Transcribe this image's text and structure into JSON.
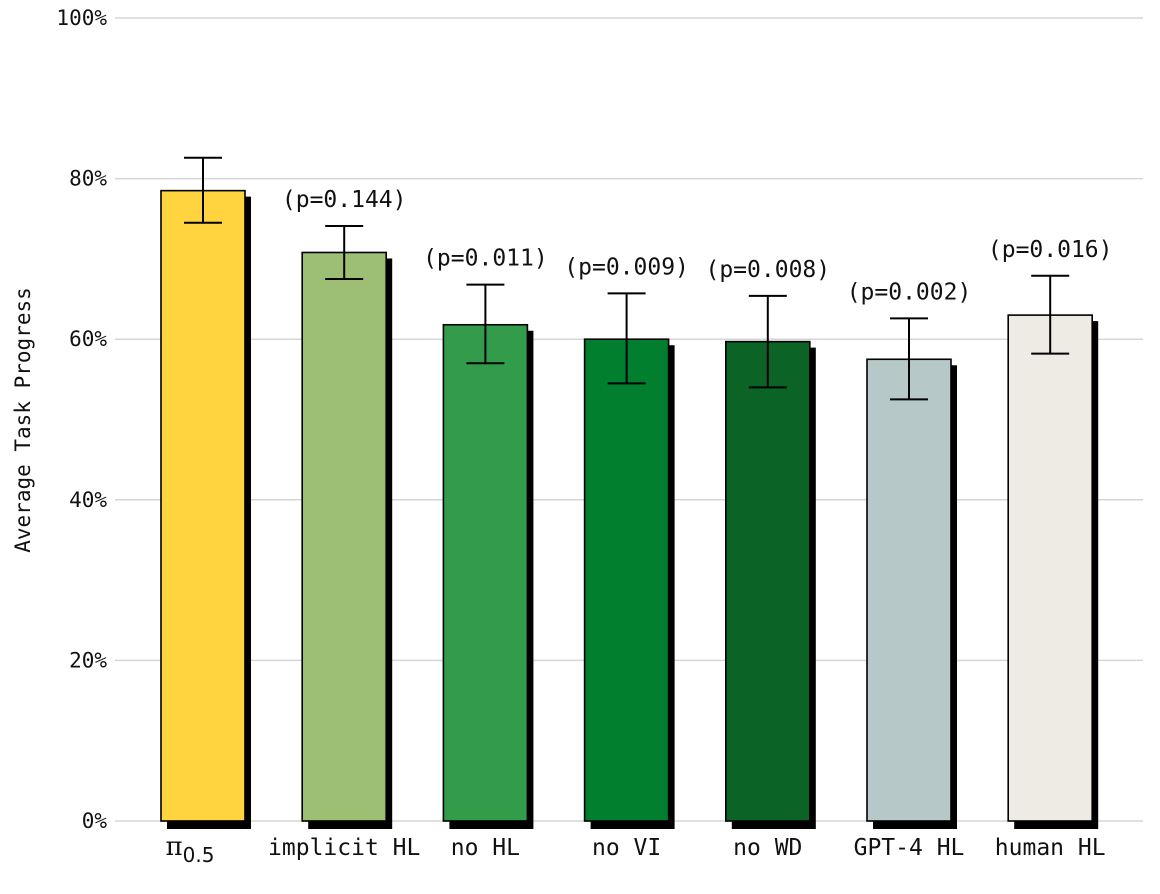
{
  "chart_data": {
    "type": "bar",
    "ylabel": "Average Task Progress",
    "xlabel": "",
    "ylim": [
      0,
      100
    ],
    "yticks": [
      0,
      20,
      40,
      60,
      80,
      100
    ],
    "ytick_labels": [
      "0%",
      "20%",
      "40%",
      "60%",
      "80%",
      "100%"
    ],
    "grid": true,
    "categories": [
      {
        "label": "π",
        "subscript": "0.5"
      },
      {
        "label": "implicit HL",
        "subscript": ""
      },
      {
        "label": "no HL",
        "subscript": ""
      },
      {
        "label": "no VI",
        "subscript": ""
      },
      {
        "label": "no WD",
        "subscript": ""
      },
      {
        "label": "GPT-4 HL",
        "subscript": ""
      },
      {
        "label": "human HL",
        "subscript": ""
      }
    ],
    "values": [
      78.5,
      70.8,
      61.8,
      60.0,
      59.7,
      57.5,
      63.0
    ],
    "error_low": [
      74.5,
      67.5,
      57.0,
      54.5,
      54.0,
      52.5,
      58.2
    ],
    "error_high": [
      82.6,
      74.1,
      66.8,
      65.7,
      65.4,
      62.6,
      67.9
    ],
    "annotations": [
      "",
      "(p=0.144)",
      "(p=0.011)",
      "(p=0.009)",
      "(p=0.008)",
      "(p=0.002)",
      "(p=0.016)"
    ],
    "colors": [
      "#FFD43F",
      "#9DBF73",
      "#339C4B",
      "#017F2E",
      "#0B6325",
      "#B6C8C8",
      "#EEEBE4"
    ]
  }
}
